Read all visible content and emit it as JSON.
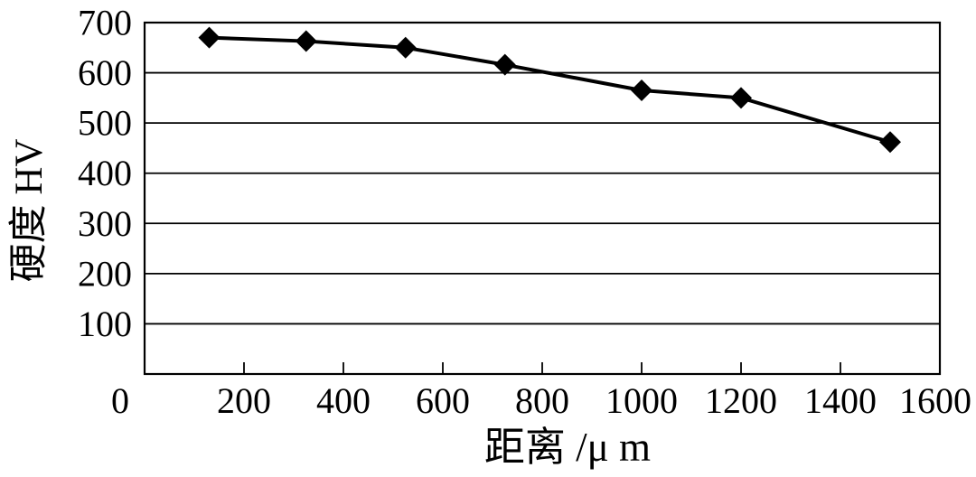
{
  "chart_data": {
    "type": "line",
    "title": "",
    "xlabel": "距离 /μ m",
    "ylabel": "硬度 HV",
    "x": [
      130,
      325,
      525,
      725,
      1000,
      1200,
      1500
    ],
    "y": [
      670,
      663,
      650,
      616,
      565,
      550,
      462
    ],
    "xlim": [
      0,
      1600
    ],
    "ylim": [
      0,
      700
    ],
    "xticks": [
      0,
      200,
      400,
      600,
      800,
      1000,
      1200,
      1400,
      1600
    ],
    "yticks": [
      100,
      200,
      300,
      400,
      500,
      600,
      700
    ],
    "grid": "horizontal",
    "legend": "none",
    "marker": "diamond",
    "line_color": "#000000",
    "marker_color": "#000000",
    "axis_color": "#000000",
    "background": "#ffffff"
  }
}
